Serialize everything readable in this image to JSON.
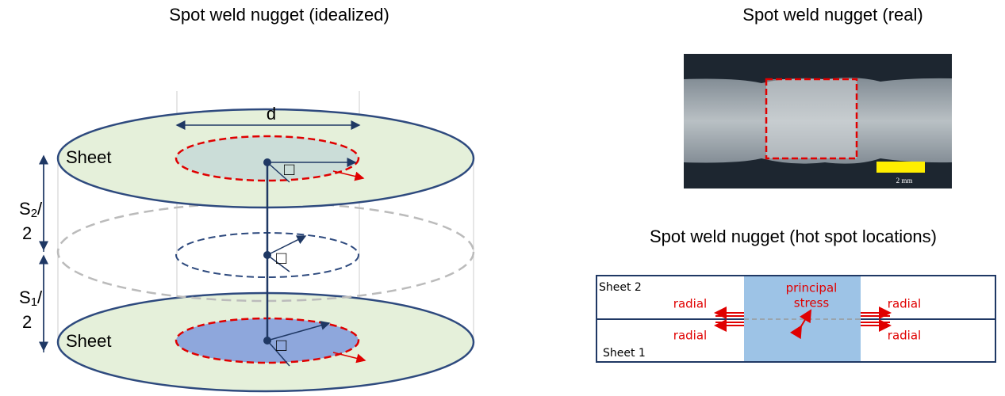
{
  "left_panel": {
    "title": "Spot weld nugget (idealized)",
    "diameter_label": "d",
    "sheet_top_label": "Sheet",
    "sheet_bottom_label": "Sheet",
    "s2_label": {
      "symbol": "S",
      "subscript": "2",
      "slash": "/",
      "denominator": "2"
    },
    "s1_label": {
      "symbol": "S",
      "subscript": "1",
      "slash": "/",
      "denominator": "2"
    },
    "angle_glyphs": [
      "□",
      "□",
      "□"
    ]
  },
  "right_top_panel": {
    "title": "Spot weld nugget (real)",
    "scale_bar_label": "2 mm"
  },
  "right_bottom_panel": {
    "title": "Spot weld nugget (hot spot locations)",
    "sheet_2_label": "Sheet 2",
    "sheet_1_label": "Sheet 1",
    "radial_labels": [
      "radial",
      "radial",
      "radial",
      "radial"
    ],
    "principal_stress_label": [
      "principal",
      "stress"
    ]
  }
}
